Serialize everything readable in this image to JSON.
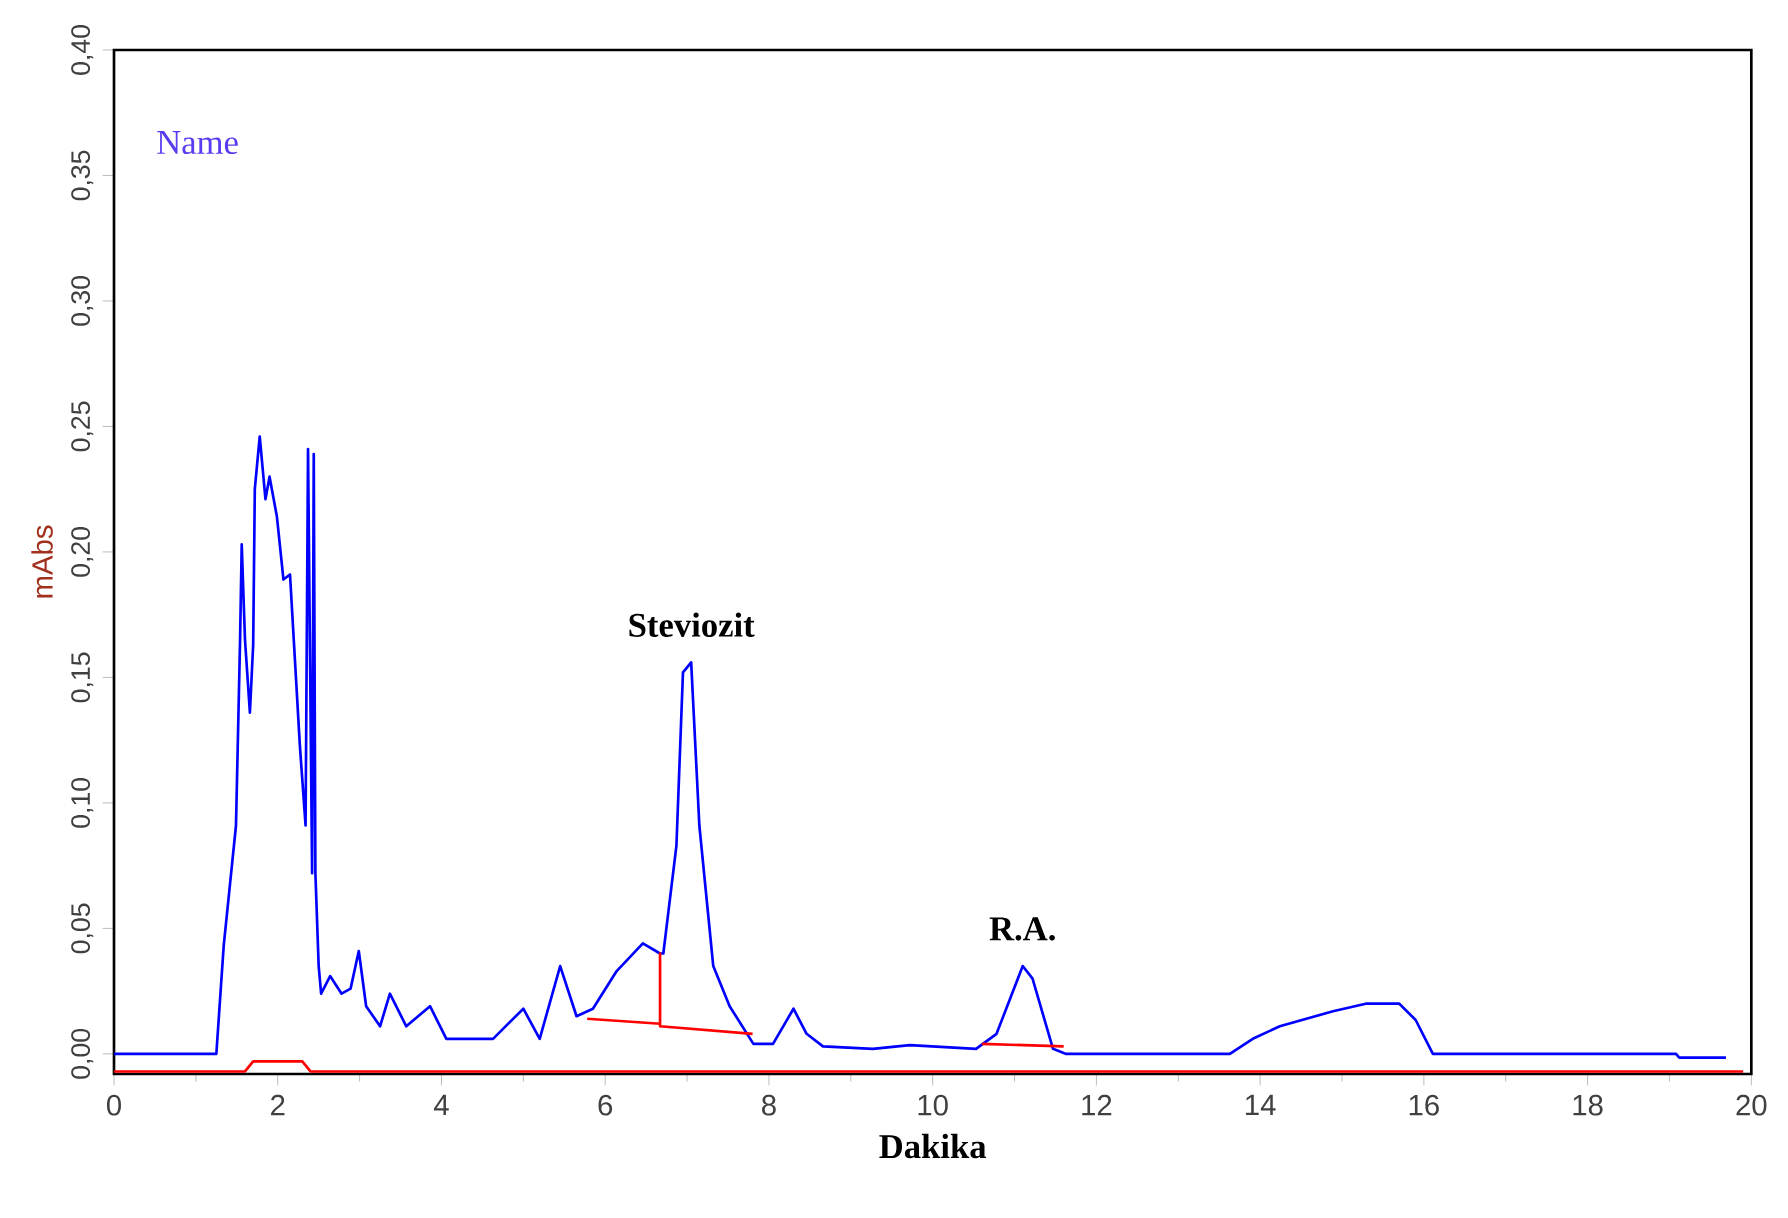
{
  "chart_data": {
    "type": "line",
    "xlabel": "Dakika",
    "ylabel": "mAbs",
    "xlim": [
      0,
      20
    ],
    "xticks": [
      0,
      2,
      4,
      6,
      8,
      10,
      12,
      14,
      16,
      18,
      20
    ],
    "ylim": [
      -0.008,
      0.4
    ],
    "yticks": [
      {
        "value": 0,
        "label": "0,00"
      },
      {
        "value": 0.05,
        "label": "0,05"
      },
      {
        "value": 0.1,
        "label": "0,10"
      },
      {
        "value": 0.15,
        "label": "0,15"
      },
      {
        "value": 0.2,
        "label": "0,20"
      },
      {
        "value": 0.25,
        "label": "0,25"
      },
      {
        "value": 0.3,
        "label": "0,30"
      },
      {
        "value": 0.35,
        "label": "0,35"
      },
      {
        "value": 0.4,
        "label": "0,40"
      }
    ],
    "grid": false,
    "marker": "none",
    "line_style": "solid",
    "series": [
      {
        "color": "#0000ff",
        "x": [
          0,
          1.25,
          1.34,
          1.49,
          1.54,
          1.56,
          1.6,
          1.66,
          1.7,
          1.72,
          1.78,
          1.85,
          1.9,
          1.99,
          2.07,
          2.15,
          2.21,
          2.27,
          2.34,
          2.37,
          2.42,
          2.44,
          2.46,
          2.5,
          2.53,
          2.64,
          2.78,
          2.89,
          2.99,
          3.08,
          3.25,
          3.37,
          3.57,
          3.86,
          4.06,
          4.63,
          5.0,
          5.2,
          5.45,
          5.65,
          5.85,
          6.14,
          6.46,
          6.67,
          6.71,
          6.87,
          6.95,
          7.05,
          7.15,
          7.32,
          7.52,
          7.81,
          8.05,
          8.3,
          8.46,
          8.66,
          9.27,
          9.72,
          10.53,
          10.78,
          11.1,
          11.22,
          11.47,
          11.63,
          13.63,
          13.91,
          14.24,
          14.89,
          15.29,
          15.7,
          15.9,
          16.11,
          19.08,
          19.12,
          19.69
        ],
        "values": [
          0,
          0,
          0.043,
          0.091,
          0.165,
          0.203,
          0.165,
          0.136,
          0.163,
          0.225,
          0.246,
          0.221,
          0.23,
          0.214,
          0.189,
          0.191,
          0.157,
          0.123,
          0.091,
          0.241,
          0.072,
          0.239,
          0.072,
          0.035,
          0.024,
          0.031,
          0.024,
          0.026,
          0.041,
          0.019,
          0.011,
          0.024,
          0.011,
          0.019,
          0.006,
          0.006,
          0.018,
          0.006,
          0.035,
          0.015,
          0.018,
          0.033,
          0.044,
          0.04,
          0.04,
          0.083,
          0.152,
          0.156,
          0.091,
          0.035,
          0.019,
          0.004,
          0.004,
          0.018,
          0.008,
          0.003,
          0.002,
          0.0035,
          0.002,
          0.008,
          0.035,
          0.03,
          0.002,
          0,
          0,
          0.006,
          0.011,
          0.017,
          0.02,
          0.02,
          0.0135,
          0,
          0,
          -0.0015,
          -0.0015
        ]
      },
      {
        "color": "#ff0000",
        "x": [
          0,
          1.6,
          1.7,
          2.3,
          2.4,
          19.9,
          null,
          5.78,
          6.67,
          6.67,
          6.67,
          7.8,
          null,
          10.6,
          11.6
        ],
        "values": [
          -0.007,
          -0.007,
          -0.003,
          -0.003,
          -0.007,
          -0.007,
          null,
          0.014,
          0.012,
          0.04,
          0.011,
          0.008,
          null,
          0.004,
          0.003
        ]
      }
    ],
    "annotations": [
      {
        "text": "Steviozit",
        "x": 7.05,
        "y": 0.156
      },
      {
        "text": "R.A.",
        "x": 11.1,
        "y": 0.035
      },
      "Name"
    ]
  }
}
